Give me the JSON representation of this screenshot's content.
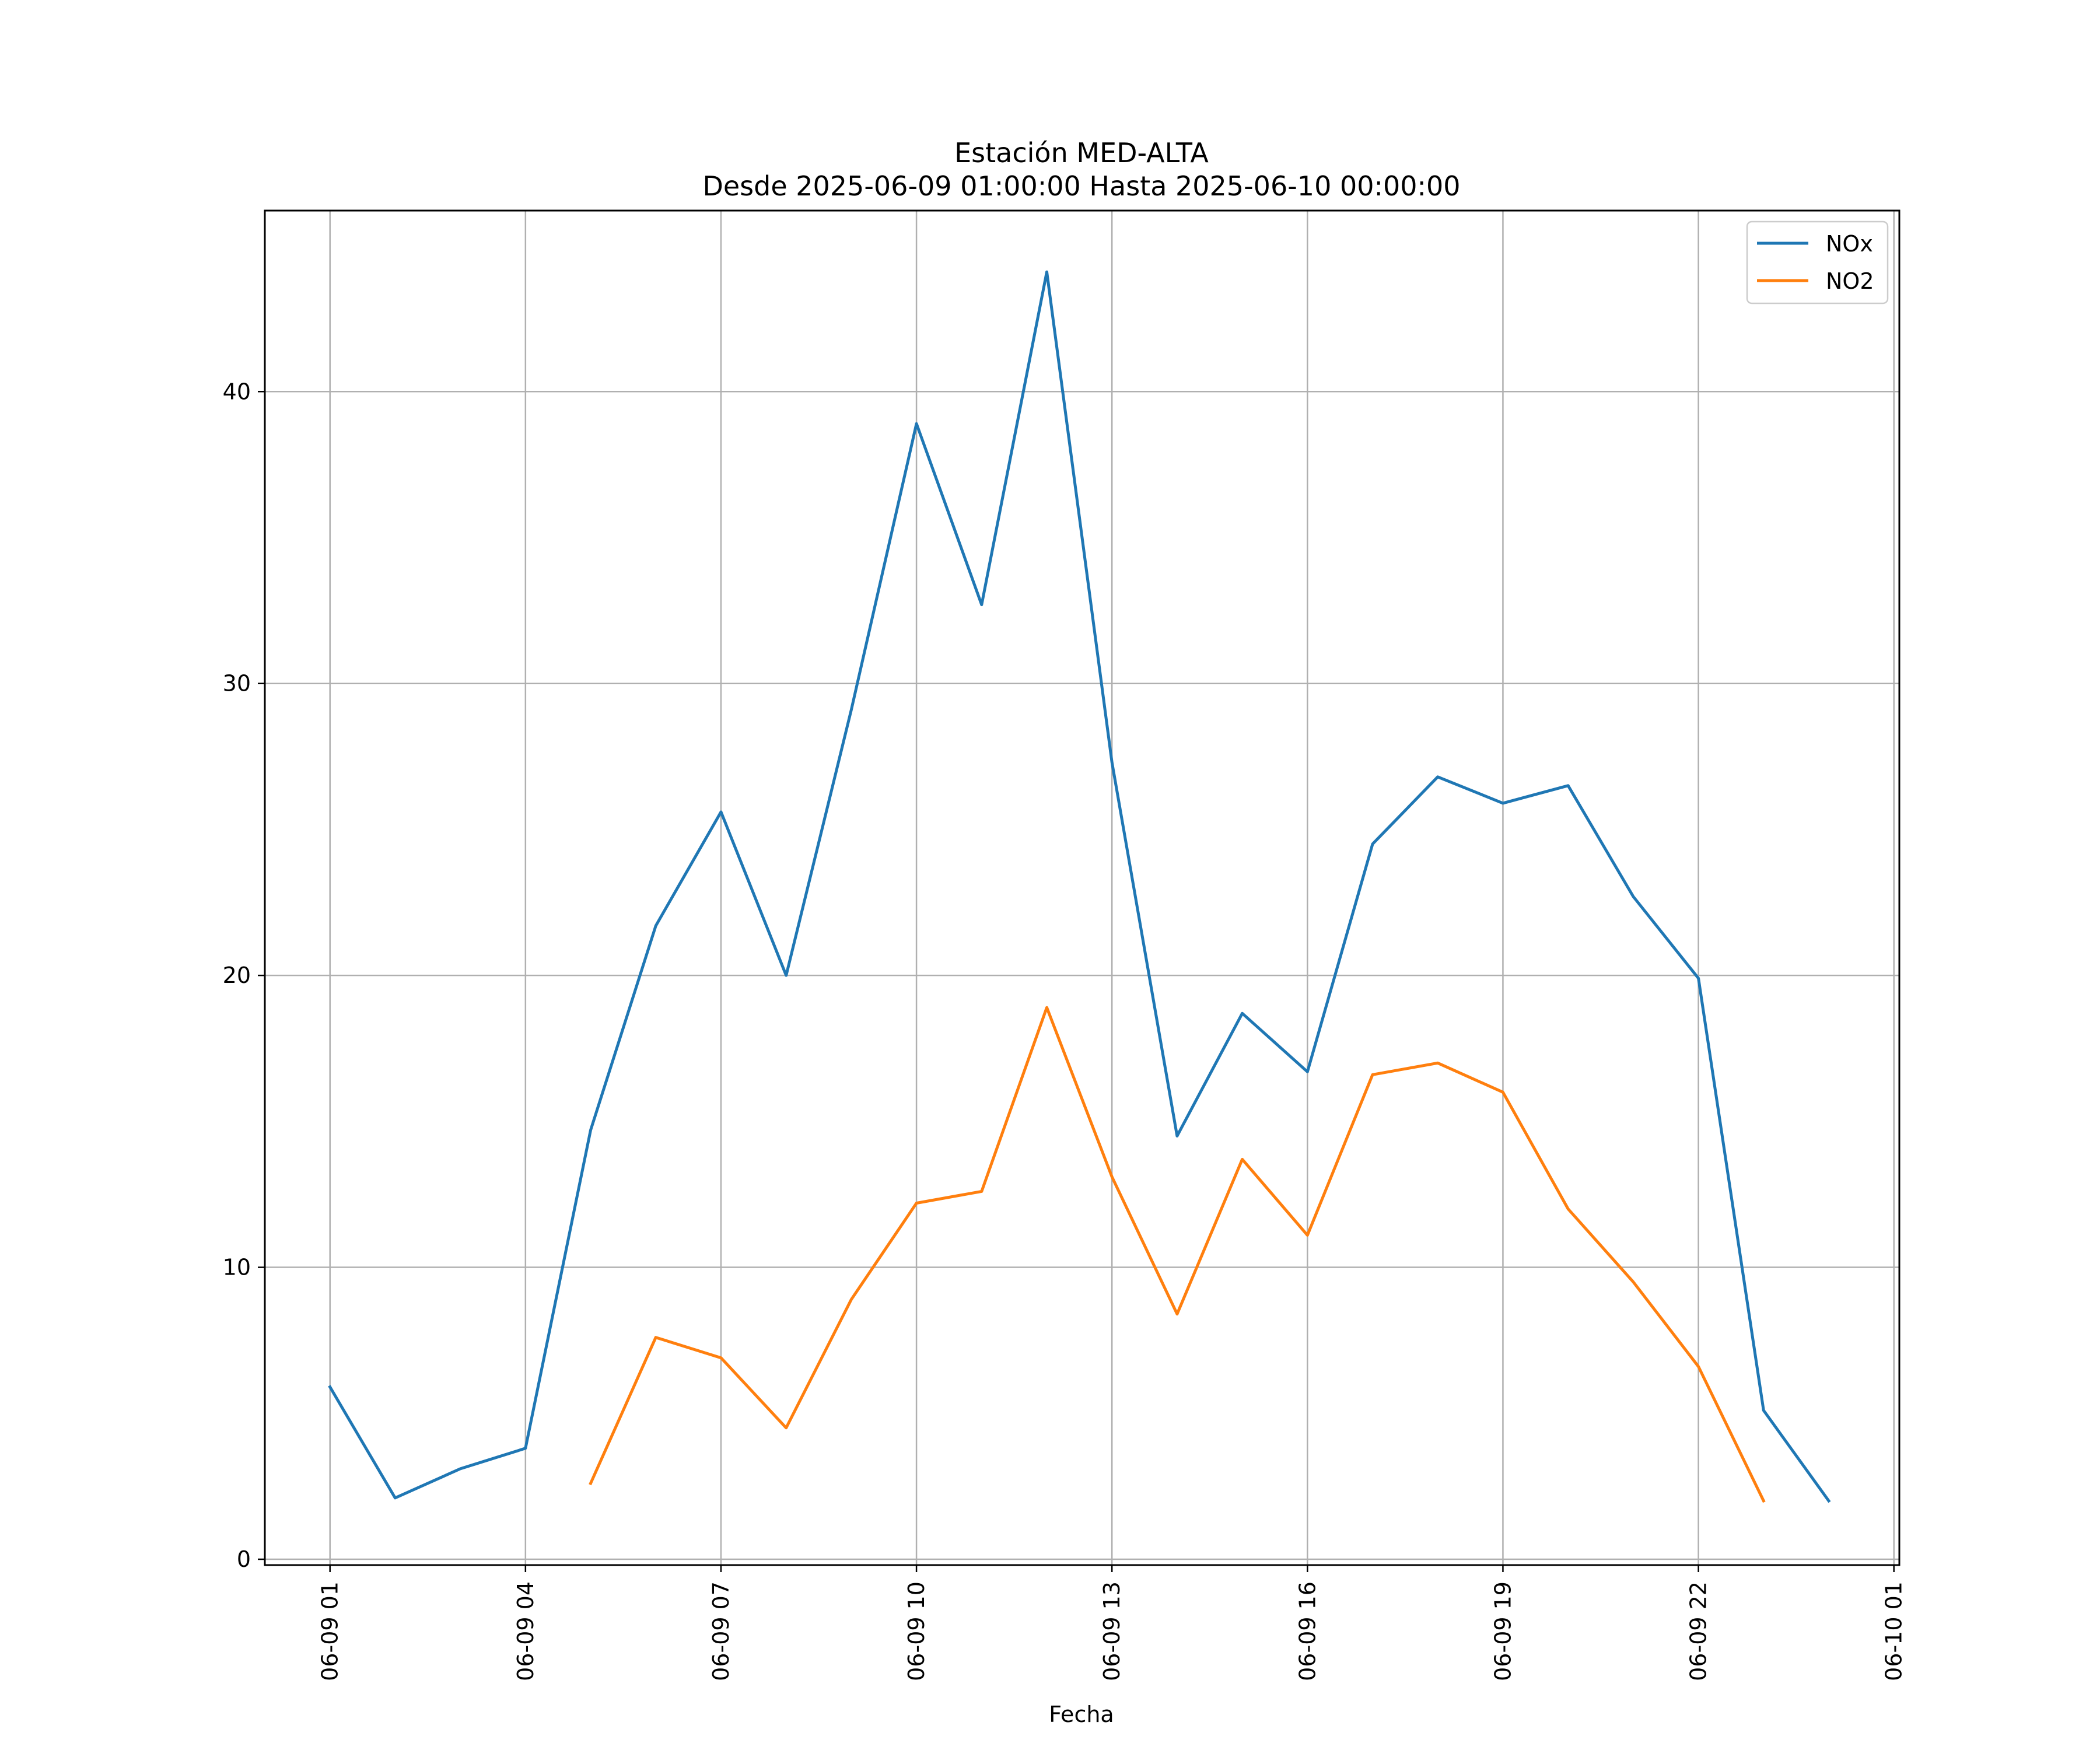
{
  "chart_data": {
    "type": "line",
    "title": "Estación MED-ALTA",
    "subtitle": "Desde 2025-06-09 01:00:00 Hasta 2025-06-10 00:00:00",
    "xlabel": "Fecha",
    "ylabel": "",
    "x_ticks": [
      "06-09 01",
      "06-09 04",
      "06-09 07",
      "06-09 10",
      "06-09 13",
      "06-09 16",
      "06-09 19",
      "06-09 22",
      "06-10 01"
    ],
    "y_ticks": [
      "0",
      "10",
      "20",
      "30",
      "40"
    ],
    "y_tick_values": [
      0,
      10,
      20,
      30,
      40
    ],
    "ylim": [
      -0.2,
      46.2
    ],
    "xlim": [
      "2025-06-09 00:00",
      "2025-06-10 01:05"
    ],
    "grid": true,
    "legend_position": "top-right",
    "x": [
      "2025-06-09 01:00",
      "2025-06-09 02:00",
      "2025-06-09 03:00",
      "2025-06-09 04:00",
      "2025-06-09 05:00",
      "2025-06-09 06:00",
      "2025-06-09 07:00",
      "2025-06-09 08:00",
      "2025-06-09 09:00",
      "2025-06-09 10:00",
      "2025-06-09 11:00",
      "2025-06-09 12:00",
      "2025-06-09 13:00",
      "2025-06-09 14:00",
      "2025-06-09 15:00",
      "2025-06-09 16:00",
      "2025-06-09 17:00",
      "2025-06-09 18:00",
      "2025-06-09 19:00",
      "2025-06-09 20:00",
      "2025-06-09 21:00",
      "2025-06-09 22:00",
      "2025-06-09 23:00",
      "2025-06-10 00:00"
    ],
    "series": [
      {
        "name": "NOx",
        "color": "#1f77b4",
        "values": [
          5.9,
          2.1,
          3.1,
          3.8,
          14.7,
          21.7,
          25.6,
          20.0,
          29.1,
          38.9,
          32.7,
          44.1,
          27.3,
          14.5,
          18.7,
          16.7,
          24.5,
          26.8,
          25.9,
          26.5,
          22.7,
          19.9,
          5.1,
          2.0
        ]
      },
      {
        "name": "NO2",
        "color": "#ff7f0e",
        "values": [
          null,
          null,
          null,
          null,
          2.6,
          7.6,
          6.9,
          4.5,
          8.9,
          12.2,
          12.6,
          18.9,
          13.1,
          8.4,
          13.7,
          11.1,
          16.6,
          17.0,
          16.0,
          12.0,
          9.5,
          6.6,
          2.0,
          null
        ]
      }
    ]
  }
}
